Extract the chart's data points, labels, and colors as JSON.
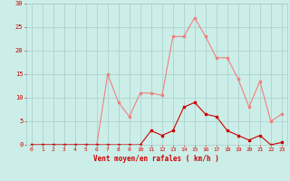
{
  "x": [
    0,
    1,
    2,
    3,
    4,
    5,
    6,
    7,
    8,
    9,
    10,
    11,
    12,
    13,
    14,
    15,
    16,
    17,
    18,
    19,
    20,
    21,
    22,
    23
  ],
  "rafales": [
    0,
    0,
    0,
    0,
    0,
    0,
    0,
    15,
    9,
    6,
    11,
    11,
    10.5,
    23,
    23,
    27,
    23,
    18.5,
    18.5,
    14,
    8,
    13.5,
    5,
    6.5
  ],
  "vent_moyen": [
    0,
    0,
    0,
    0,
    0,
    0,
    0,
    0,
    0,
    0,
    0,
    3,
    2,
    3,
    8,
    9,
    6.5,
    6,
    3,
    2,
    1,
    2,
    0,
    0.5
  ],
  "xlabel": "Vent moyen/en rafales ( km/h )",
  "ylim": [
    0,
    30
  ],
  "yticks": [
    0,
    5,
    10,
    15,
    20,
    25,
    30
  ],
  "xticks": [
    0,
    1,
    2,
    3,
    4,
    5,
    6,
    7,
    8,
    9,
    10,
    11,
    12,
    13,
    14,
    15,
    16,
    17,
    18,
    19,
    20,
    21,
    22,
    23
  ],
  "color_rafales": "#f08080",
  "color_vent": "#cc0000",
  "bg_color": "#cceee8",
  "grid_color": "#aacccc",
  "axis_color": "#cc0000",
  "label_color": "#cc0000"
}
